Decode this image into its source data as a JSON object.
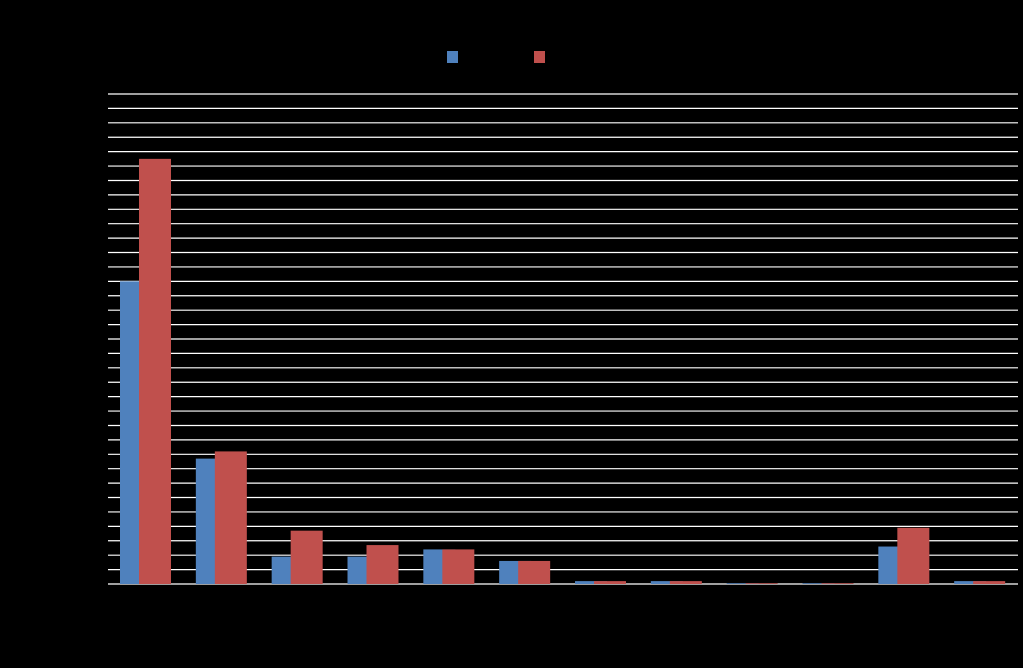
{
  "chart_data": {
    "type": "bar",
    "categories": [
      null,
      null,
      null,
      null,
      null,
      null,
      null,
      null,
      null,
      null,
      null,
      null
    ],
    "series": [
      {
        "color": "#4f81bd",
        "values": [
          21,
          8.7,
          1.9,
          1.9,
          2.4,
          1.6,
          0.2,
          0.2,
          0.05,
          0.05,
          2.6,
          0.2
        ]
      },
      {
        "color": "#c0504d",
        "values": [
          29.5,
          9.2,
          3.7,
          2.7,
          2.4,
          1.6,
          0.2,
          0.2,
          0.05,
          0.05,
          3.9,
          0.2
        ]
      }
    ],
    "ylim": [
      0,
      34
    ],
    "yticks": [
      0,
      1,
      2,
      3,
      4,
      5,
      6,
      7,
      8,
      9,
      10,
      11,
      12,
      13,
      14,
      15,
      16,
      17,
      18,
      19,
      20,
      21,
      22,
      23,
      24,
      25,
      26,
      27,
      28,
      29,
      30,
      31,
      32,
      33,
      34
    ],
    "grid": true,
    "background": "#000000",
    "grid_color": "#ffffff"
  }
}
